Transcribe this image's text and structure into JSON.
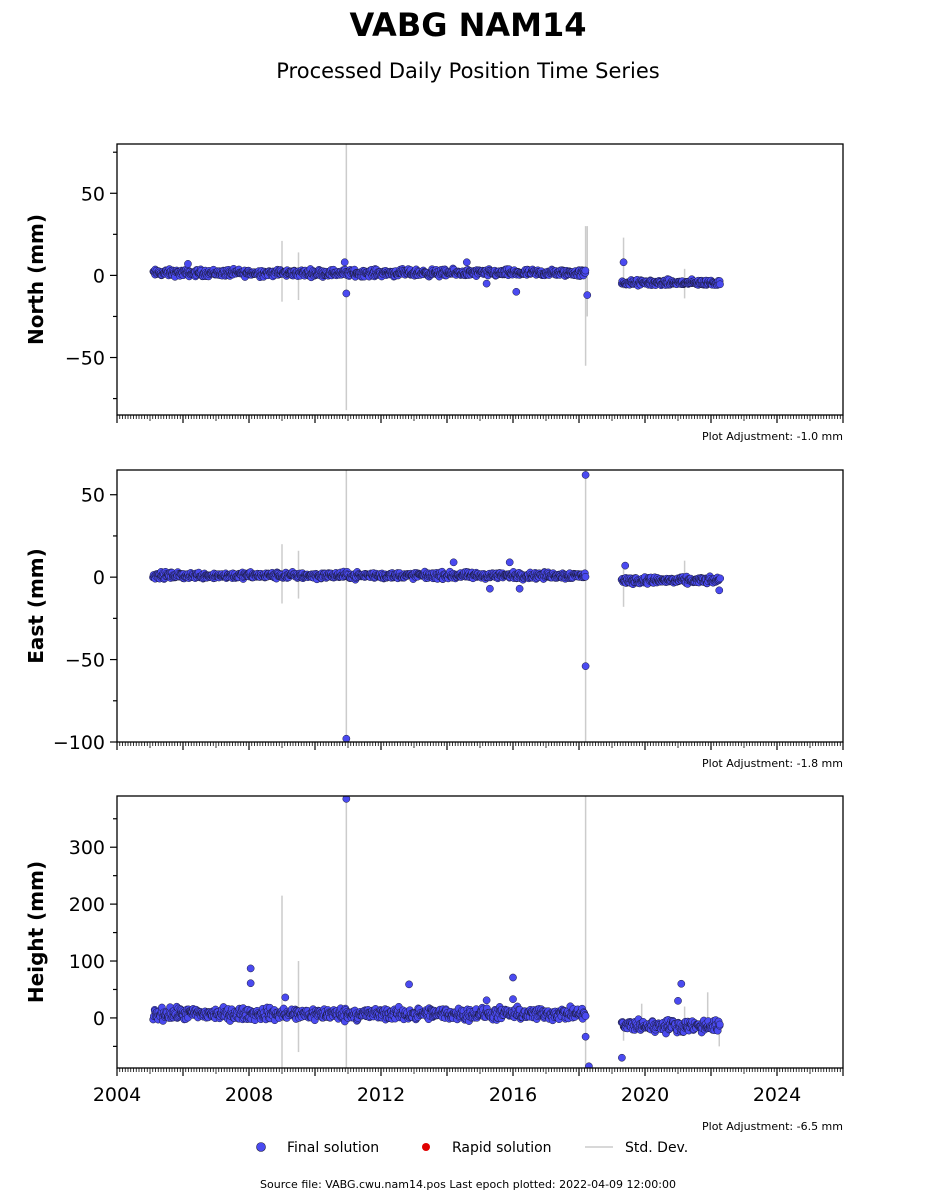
{
  "title": "VABG NAM14",
  "subtitle": "Processed Daily Position Time Series",
  "legend": {
    "final": "Final solution",
    "rapid": "Rapid solution",
    "std": "Std. Dev."
  },
  "footer": "Source file: VABG.cwu.nam14.pos  Last epoch plotted: 2022-04-09 12:00:00",
  "colors": {
    "final": "#4a4af0",
    "final_edge": "#1a1a3a",
    "rapid": "#e00000",
    "stddev": "#cccccc"
  },
  "chart_data": [
    {
      "type": "scatter",
      "ylabel": "North (mm)",
      "xlim": [
        2004,
        2026
      ],
      "ylim": [
        -85,
        80
      ],
      "yticks": [
        -50,
        0,
        50
      ],
      "xticks": [
        "2004",
        "2008",
        "2012",
        "2016",
        "2020",
        "2024"
      ],
      "xtick_values": [
        2004,
        2008,
        2012,
        2016,
        2020,
        2024
      ],
      "show_xtick_labels": false,
      "adjustment": "Plot Adjustment: -1.0 mm",
      "series": [
        {
          "segments": [
            [
              2005.1,
              2018.2,
              1.5,
              1.8
            ],
            [
              2019.3,
              2022.27,
              -4.5,
              1.5
            ]
          ],
          "outliers": [
            [
              2010.95,
              -11
            ],
            [
              2010.9,
              8
            ],
            [
              2015.2,
              -5
            ],
            [
              2016.1,
              -10
            ],
            [
              2018.25,
              -12
            ],
            [
              2019.35,
              8
            ],
            [
              2006.15,
              7
            ],
            [
              2014.6,
              8
            ]
          ],
          "errorbars": [
            [
              2009.0,
              -16,
              21
            ],
            [
              2009.5,
              -15,
              14
            ],
            [
              2010.95,
              -82,
              80
            ],
            [
              2018.2,
              -55,
              30
            ],
            [
              2018.25,
              -25,
              30
            ],
            [
              2019.35,
              -8,
              23
            ],
            [
              2021.2,
              -14,
              4
            ]
          ]
        }
      ]
    },
    {
      "type": "scatter",
      "ylabel": "East (mm)",
      "xlim": [
        2004,
        2026
      ],
      "ylim": [
        -100,
        65
      ],
      "yticks": [
        -100,
        -50,
        0,
        50
      ],
      "xticks": [
        "2004",
        "2008",
        "2012",
        "2016",
        "2020",
        "2024"
      ],
      "xtick_values": [
        2004,
        2008,
        2012,
        2016,
        2020,
        2024
      ],
      "show_xtick_labels": false,
      "adjustment": "Plot Adjustment: -1.8 mm",
      "series": [
        {
          "segments": [
            [
              2005.1,
              2018.2,
              1.0,
              1.7
            ],
            [
              2019.3,
              2022.27,
              -2.0,
              1.7
            ]
          ],
          "outliers": [
            [
              2010.95,
              -98
            ],
            [
              2018.2,
              -54
            ],
            [
              2018.2,
              62
            ],
            [
              2015.3,
              -7
            ],
            [
              2016.2,
              -7
            ],
            [
              2014.2,
              9
            ],
            [
              2015.9,
              9
            ],
            [
              2019.4,
              7
            ],
            [
              2022.25,
              -8
            ]
          ],
          "errorbars": [
            [
              2009.0,
              -16,
              20
            ],
            [
              2009.5,
              -13,
              16
            ],
            [
              2010.95,
              -100,
              65
            ],
            [
              2018.2,
              -100,
              65
            ],
            [
              2019.35,
              -18,
              5
            ],
            [
              2021.2,
              -6,
              10
            ]
          ]
        }
      ]
    },
    {
      "type": "scatter",
      "ylabel": "Height (mm)",
      "xlim": [
        2004,
        2026
      ],
      "ylim": [
        -88,
        390
      ],
      "yticks": [
        0,
        100,
        200,
        300
      ],
      "xticks": [
        "2004",
        "2008",
        "2012",
        "2016",
        "2020",
        "2024"
      ],
      "xtick_values": [
        2004,
        2008,
        2012,
        2016,
        2020,
        2024
      ],
      "show_xtick_labels": true,
      "adjustment": "Plot Adjustment: -6.5 mm",
      "series": [
        {
          "segments": [
            [
              2005.1,
              2018.2,
              7,
              9
            ],
            [
              2019.3,
              2022.27,
              -14,
              9
            ]
          ],
          "outliers": [
            [
              2010.95,
              385
            ],
            [
              2008.05,
              87
            ],
            [
              2008.05,
              61
            ],
            [
              2012.85,
              59
            ],
            [
              2016.0,
              71
            ],
            [
              2016.0,
              33
            ],
            [
              2015.2,
              31
            ],
            [
              2009.1,
              36
            ],
            [
              2018.2,
              -33
            ],
            [
              2019.3,
              -70
            ],
            [
              2018.3,
              -85
            ],
            [
              2021.1,
              60
            ],
            [
              2021.0,
              30
            ]
          ],
          "errorbars": [
            [
              2009.0,
              -88,
              215
            ],
            [
              2009.5,
              -60,
              100
            ],
            [
              2010.95,
              -88,
              390
            ],
            [
              2018.2,
              -88,
              390
            ],
            [
              2019.35,
              -40,
              0
            ],
            [
              2019.9,
              -20,
              25
            ],
            [
              2021.2,
              -30,
              20
            ],
            [
              2021.9,
              -20,
              45
            ],
            [
              2022.25,
              -50,
              0
            ]
          ]
        }
      ]
    }
  ]
}
